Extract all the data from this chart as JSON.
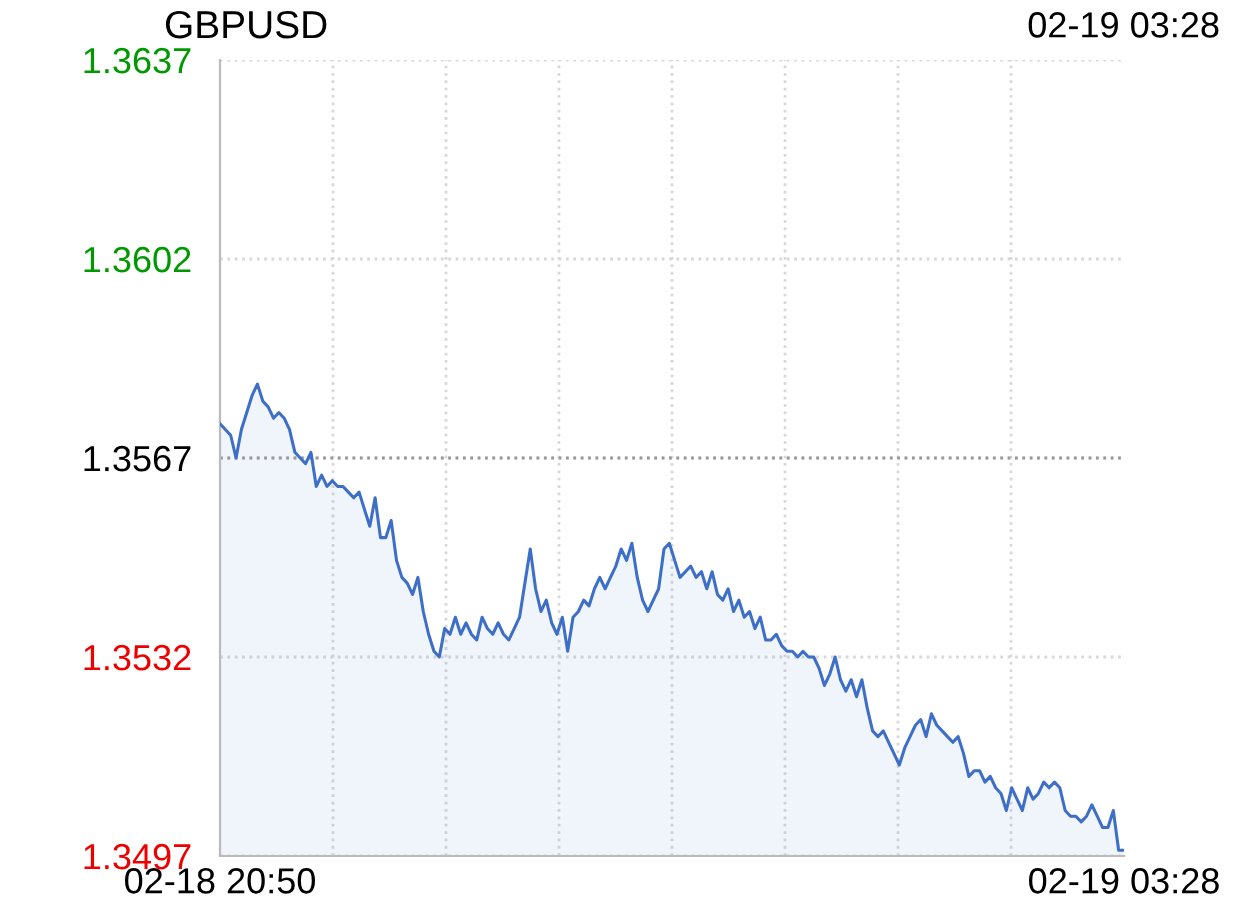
{
  "chart_data": {
    "type": "area",
    "title": "GBPUSD",
    "annotations": [
      "02-19 03:28"
    ],
    "categories": [
      "02-18 20:50",
      null,
      null,
      null,
      null,
      null,
      null,
      null,
      null,
      null,
      null,
      null,
      null,
      null,
      null,
      null,
      null,
      null,
      null,
      null,
      null,
      null,
      null,
      null,
      null,
      null,
      null,
      null,
      null,
      null,
      null,
      null,
      null,
      null,
      null,
      null,
      null,
      null,
      null,
      null,
      null,
      null,
      null,
      null,
      null,
      null,
      null,
      null,
      null,
      null,
      null,
      null,
      null,
      null,
      null,
      null,
      null,
      null,
      null,
      null,
      null,
      null,
      null,
      null,
      null,
      null,
      null,
      null,
      null,
      null,
      null,
      null,
      null,
      null,
      null,
      null,
      null,
      null,
      null,
      null,
      null,
      null,
      null,
      null,
      null,
      null,
      null,
      null,
      null,
      null,
      null,
      null,
      null,
      null,
      null,
      null,
      null,
      null,
      null,
      null,
      null,
      null,
      null,
      null,
      null,
      null,
      null,
      null,
      null,
      null,
      null,
      null,
      null,
      null,
      null,
      null,
      null,
      null,
      null,
      null,
      null,
      null,
      null,
      null,
      null,
      null,
      null,
      null,
      null,
      null,
      null,
      null,
      null,
      null,
      null,
      null,
      null,
      null,
      null,
      null,
      null,
      null,
      null,
      null,
      null,
      null,
      null,
      null,
      null,
      null,
      null,
      null,
      null,
      null,
      null,
      null,
      null,
      null,
      null,
      null,
      null,
      null,
      null,
      null,
      null,
      null,
      null,
      null,
      null,
      "02-19 03:28"
    ],
    "ylim": [
      1.3497,
      1.3637
    ],
    "yticks": [
      {
        "value": 1.3497,
        "label": "1.3497"
      },
      {
        "value": 1.3532,
        "label": "1.3532"
      },
      {
        "value": 1.3567,
        "label": "1.3567"
      },
      {
        "value": 1.3602,
        "label": "1.3602"
      },
      {
        "value": 1.3637,
        "label": "1.3637"
      }
    ],
    "grid": true,
    "ref_lines": [
      {
        "axis": "y",
        "value": 1.3567,
        "label": null,
        "color": "#999999",
        "line_style": "dotted"
      }
    ],
    "series": [
      {
        "color": "#3d6fc9",
        "values": [
          1.3573,
          1.3572,
          1.3571,
          1.3567,
          1.3572,
          1.3575,
          1.3578,
          1.358,
          1.3577,
          1.3576,
          1.3574,
          1.3575,
          1.3574,
          1.3572,
          1.3568,
          1.3567,
          1.3566,
          1.3568,
          1.3562,
          1.3564,
          1.3562,
          1.3563,
          1.3562,
          1.3562,
          1.3561,
          1.356,
          1.3561,
          1.3558,
          1.3555,
          1.356,
          1.3553,
          1.3553,
          1.3556,
          1.3549,
          1.3546,
          1.3545,
          1.3543,
          1.3546,
          1.354,
          1.3536,
          1.3533,
          1.3532,
          1.3537,
          1.3536,
          1.3539,
          1.3536,
          1.3538,
          1.3536,
          1.3535,
          1.3539,
          1.3537,
          1.3536,
          1.3538,
          1.3536,
          1.3535,
          1.3537,
          1.3539,
          1.3545,
          1.3551,
          1.3544,
          1.354,
          1.3542,
          1.3538,
          1.3536,
          1.3539,
          1.3533,
          1.3539,
          1.354,
          1.3542,
          1.3541,
          1.3544,
          1.3546,
          1.3544,
          1.3546,
          1.3548,
          1.3551,
          1.3549,
          1.3552,
          1.3546,
          1.3542,
          1.354,
          1.3542,
          1.3544,
          1.3551,
          1.3552,
          1.3549,
          1.3546,
          1.3547,
          1.3548,
          1.3546,
          1.3547,
          1.3544,
          1.3547,
          1.3543,
          1.3542,
          1.3544,
          1.354,
          1.3542,
          1.3539,
          1.354,
          1.3537,
          1.3539,
          1.3535,
          1.3535,
          1.3536,
          1.3534,
          1.3533,
          1.3533,
          1.3532,
          1.3533,
          1.3532,
          1.3532,
          1.353,
          1.3527,
          1.3529,
          1.3532,
          1.3528,
          1.3526,
          1.3528,
          1.3525,
          1.3528,
          1.3523,
          1.3519,
          1.3518,
          1.3519,
          1.3517,
          1.3515,
          1.3513,
          1.3516,
          1.3518,
          1.352,
          1.3521,
          1.3518,
          1.3522,
          1.352,
          1.3519,
          1.3518,
          1.3517,
          1.3518,
          1.3515,
          1.3511,
          1.3512,
          1.3512,
          1.351,
          1.3511,
          1.3509,
          1.3508,
          1.3505,
          1.3509,
          1.3507,
          1.3505,
          1.3509,
          1.3507,
          1.3508,
          1.351,
          1.3509,
          1.351,
          1.3509,
          1.3505,
          1.3504,
          1.3504,
          1.3503,
          1.3504,
          1.3506,
          1.3504,
          1.3502,
          1.3502,
          1.3505,
          1.3498,
          1.3498
        ]
      }
    ]
  }
}
